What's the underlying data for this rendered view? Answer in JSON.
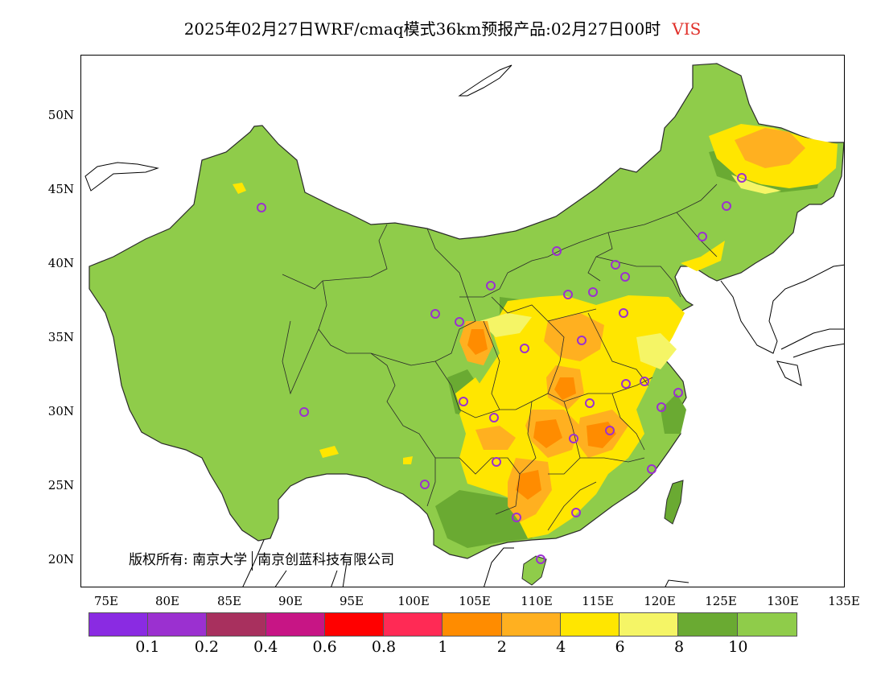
{
  "title": {
    "main": "2025年02月27日WRF/cmaq模式36km预报产品:02月27日00时",
    "variable": "VIS"
  },
  "axes": {
    "lat_labels": [
      "50N",
      "45N",
      "40N",
      "35N",
      "30N",
      "25N",
      "20N"
    ],
    "lon_labels": [
      "75E",
      "80E",
      "85E",
      "90E",
      "95E",
      "100E",
      "105E",
      "110E",
      "115E",
      "120E",
      "125E",
      "130E",
      "135E"
    ]
  },
  "copyright": {
    "label": "版权所有:",
    "org1": "南京大学",
    "org2": "南京创蓝科技有限公司"
  },
  "legend": {
    "colors": [
      "#8a2be2",
      "#9b30d0",
      "#a8305e",
      "#c71585",
      "#ff0000",
      "#ff2a55",
      "#ff8c00",
      "#ffb020",
      "#ffe600",
      "#f5f566",
      "#6aaa32",
      "#8fcc4a"
    ],
    "ticks": [
      "0.1",
      "0.2",
      "0.4",
      "0.6",
      "0.8",
      "1",
      "2",
      "4",
      "6",
      "8",
      "10"
    ]
  },
  "colors": {
    "land_good": "#8fcc4a",
    "land_dark": "#6aaa32",
    "vis_8": "#f5f566",
    "vis_6": "#ffe600",
    "vis_4": "#ffb020",
    "vis_2": "#ff8c00",
    "station": "#9b30d0"
  }
}
